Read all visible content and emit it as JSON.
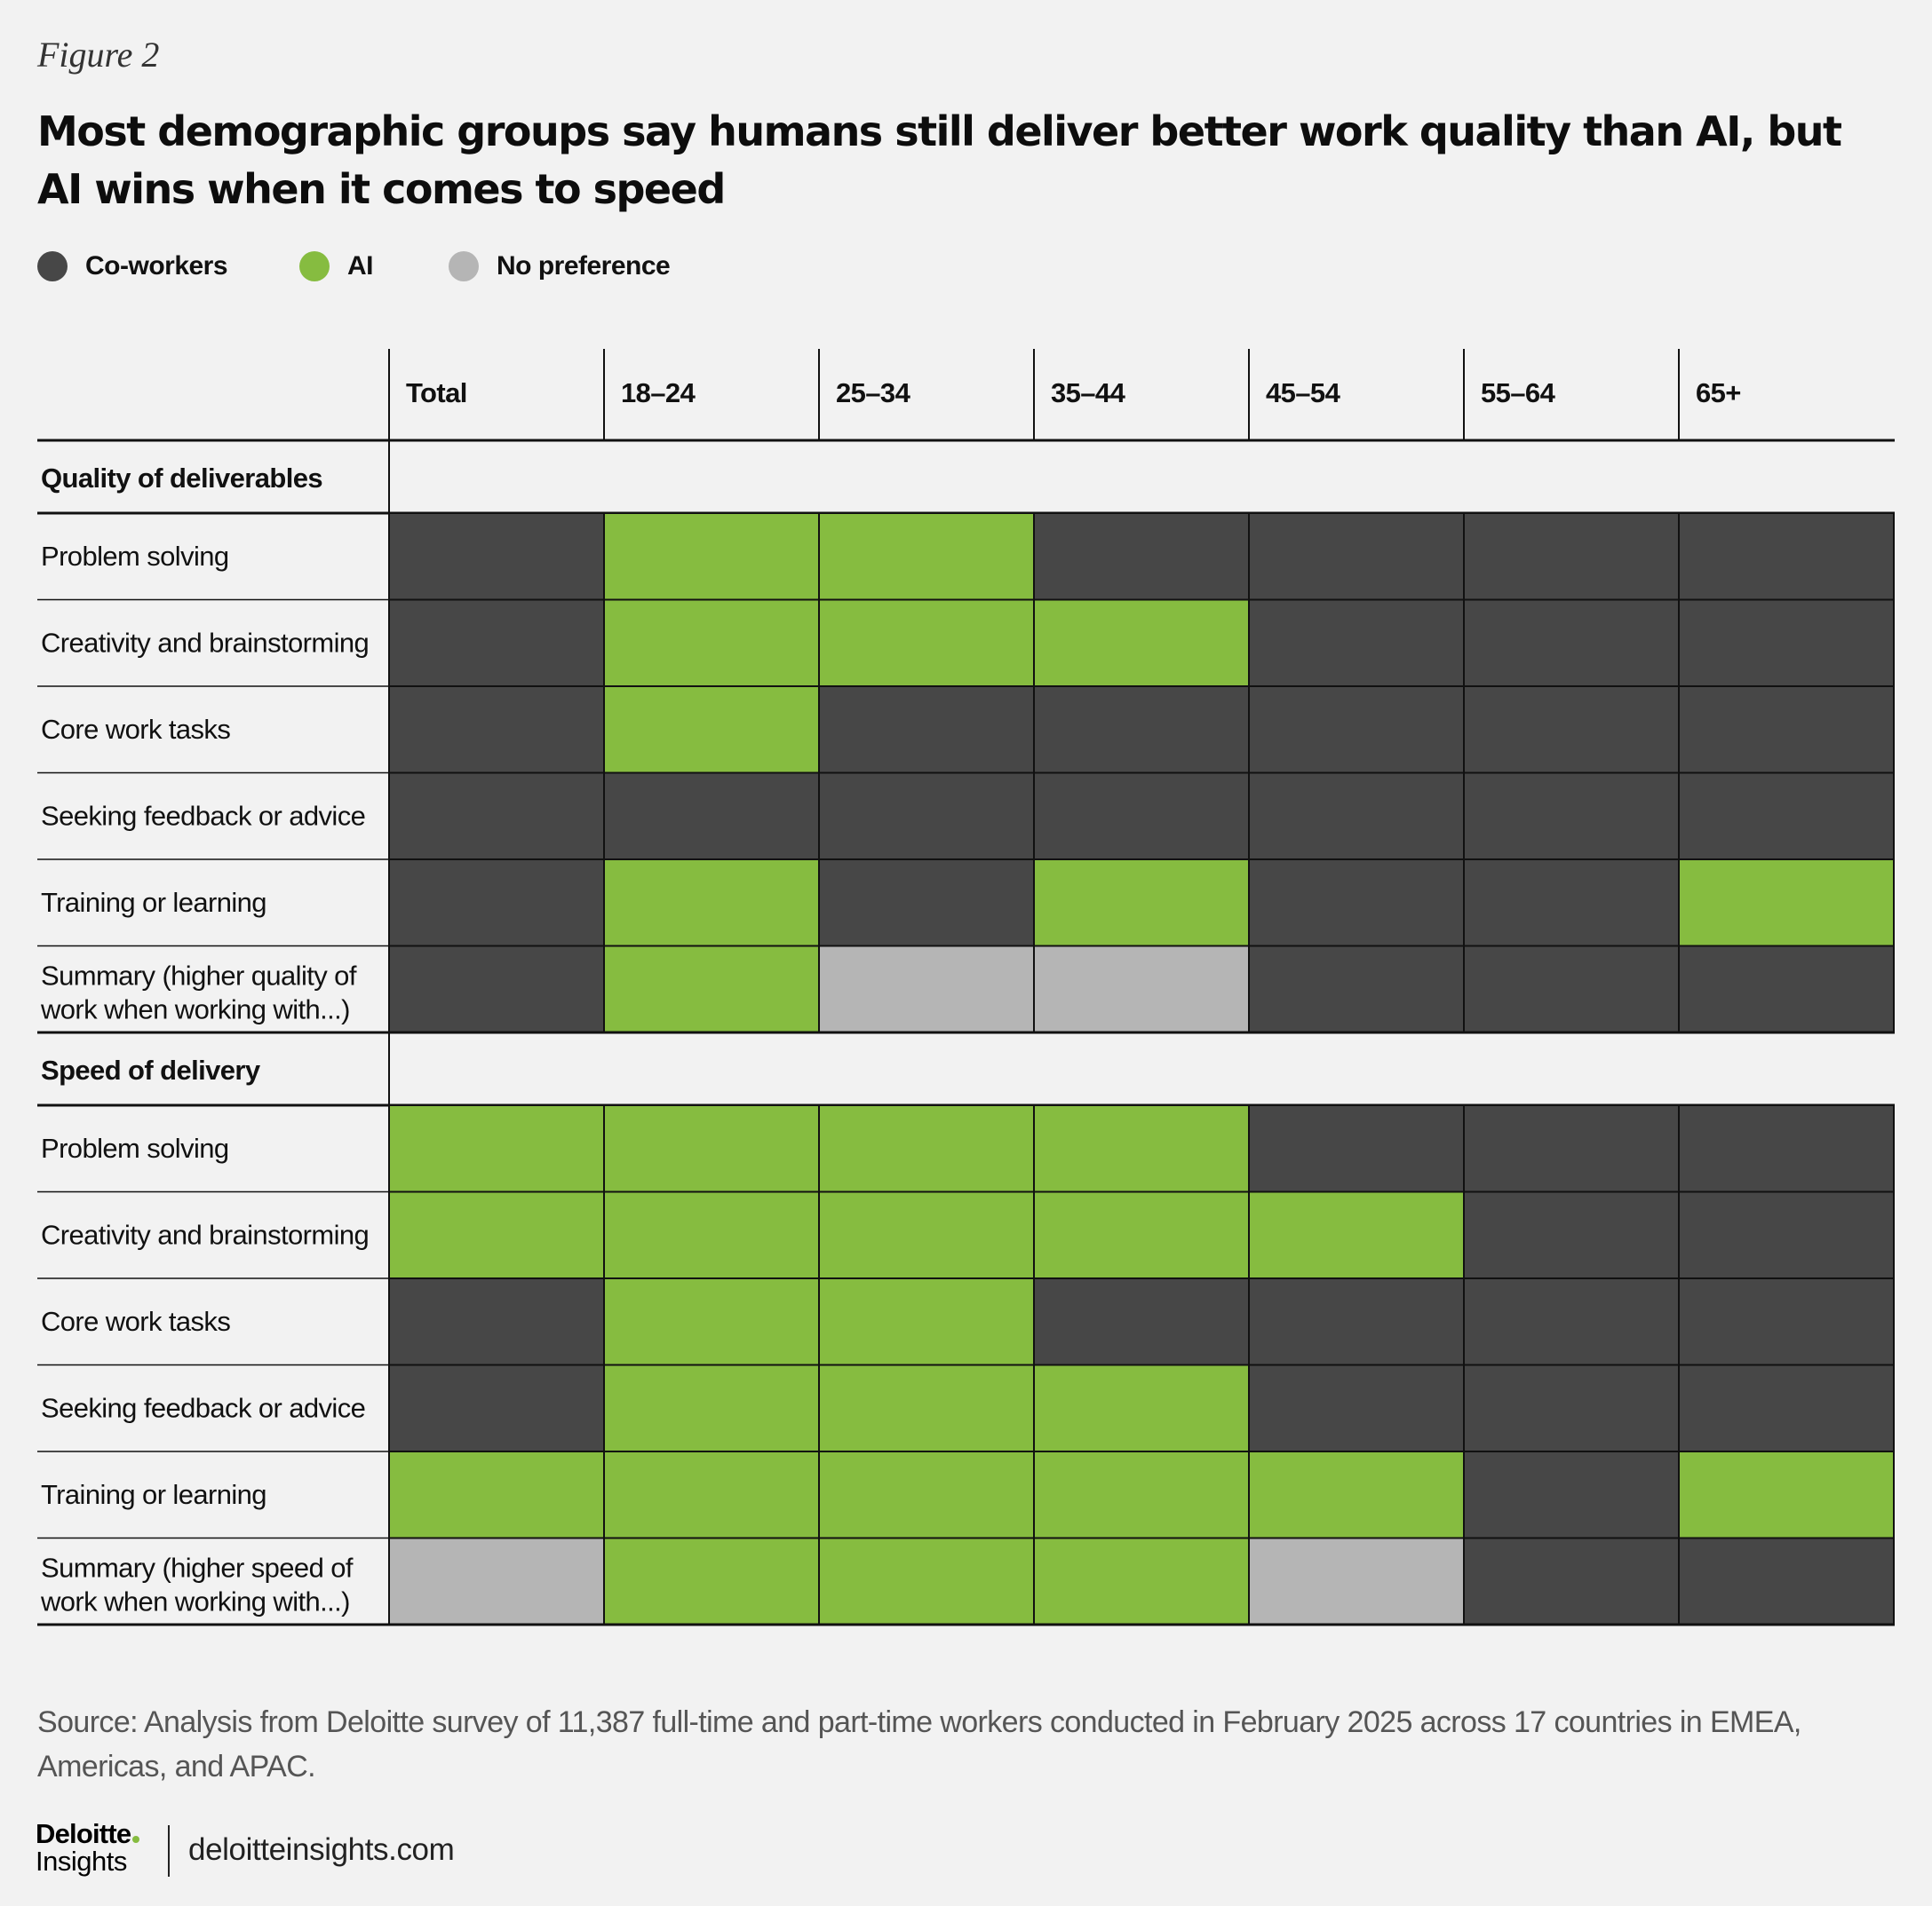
{
  "figure_label": "Figure 2",
  "title": "Most demographic groups say humans still deliver better work quality than AI, but AI wins when it comes to speed",
  "legend": [
    {
      "key": "coworkers",
      "label": "Co-workers",
      "color": "#474747"
    },
    {
      "key": "ai",
      "label": "AI",
      "color": "#86bc40"
    },
    {
      "key": "none",
      "label": "No preference",
      "color": "#b5b5b5"
    }
  ],
  "chart_data": {
    "type": "heatmap",
    "columns": [
      "Total",
      "18–24",
      "25–34",
      "35–44",
      "45–54",
      "55–64",
      "65+"
    ],
    "sections": [
      {
        "name": "Quality of deliverables",
        "rows": [
          {
            "label": "Problem solving",
            "values": [
              "coworkers",
              "ai",
              "ai",
              "coworkers",
              "coworkers",
              "coworkers",
              "coworkers"
            ]
          },
          {
            "label": "Creativity and brainstorming",
            "values": [
              "coworkers",
              "ai",
              "ai",
              "ai",
              "coworkers",
              "coworkers",
              "coworkers"
            ]
          },
          {
            "label": "Core work tasks",
            "values": [
              "coworkers",
              "ai",
              "coworkers",
              "coworkers",
              "coworkers",
              "coworkers",
              "coworkers"
            ]
          },
          {
            "label": "Seeking feedback or advice",
            "values": [
              "coworkers",
              "coworkers",
              "coworkers",
              "coworkers",
              "coworkers",
              "coworkers",
              "coworkers"
            ]
          },
          {
            "label": "Training or learning",
            "values": [
              "coworkers",
              "ai",
              "coworkers",
              "ai",
              "coworkers",
              "coworkers",
              "ai"
            ]
          },
          {
            "label": "Summary (higher quality of work when working with...)",
            "values": [
              "coworkers",
              "ai",
              "none",
              "none",
              "coworkers",
              "coworkers",
              "coworkers"
            ]
          }
        ]
      },
      {
        "name": "Speed of delivery",
        "rows": [
          {
            "label": "Problem solving",
            "values": [
              "ai",
              "ai",
              "ai",
              "ai",
              "coworkers",
              "coworkers",
              "coworkers"
            ]
          },
          {
            "label": "Creativity and brainstorming",
            "values": [
              "ai",
              "ai",
              "ai",
              "ai",
              "ai",
              "coworkers",
              "coworkers"
            ]
          },
          {
            "label": "Core work tasks",
            "values": [
              "coworkers",
              "ai",
              "ai",
              "coworkers",
              "coworkers",
              "coworkers",
              "coworkers"
            ]
          },
          {
            "label": "Seeking feedback or advice",
            "values": [
              "coworkers",
              "ai",
              "ai",
              "ai",
              "coworkers",
              "coworkers",
              "coworkers"
            ]
          },
          {
            "label": "Training or learning",
            "values": [
              "ai",
              "ai",
              "ai",
              "ai",
              "ai",
              "coworkers",
              "ai"
            ]
          },
          {
            "label": "Summary (higher speed of work when working with...)",
            "values": [
              "none",
              "ai",
              "ai",
              "ai",
              "none",
              "coworkers",
              "coworkers"
            ]
          }
        ]
      }
    ]
  },
  "source": "Source: Analysis from Deloitte survey of 11,387 full-time and part-time workers conducted in February 2025 across 17 countries in EMEA, Americas, and APAC.",
  "footer": {
    "logo_brand": "Deloitte",
    "logo_sub": "Insights",
    "logo_dot_color": "#86bc40",
    "url": "deloitteinsights.com"
  }
}
